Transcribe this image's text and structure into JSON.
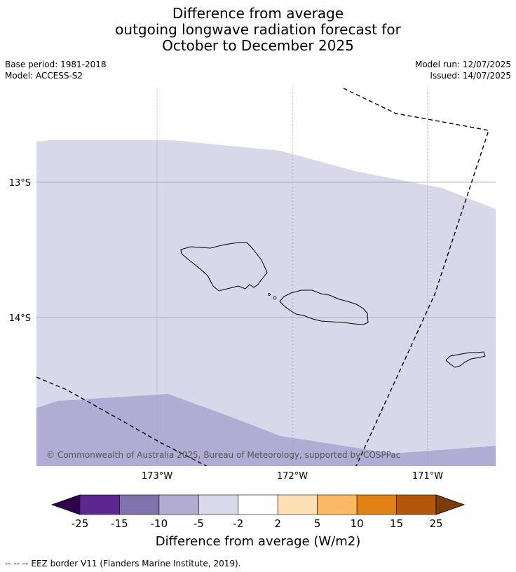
{
  "title": {
    "line1": "Difference from average",
    "line2": "outgoing longwave radiation forecast for",
    "line3": "October to December 2025"
  },
  "meta": {
    "base_period": "Base period: 1981-2018",
    "model": "Model: ACCESS-S2",
    "model_run": "Model run: 12/07/2025",
    "issued": "Issued: 14/07/2025"
  },
  "map": {
    "lat_labels": [
      "13°S",
      "14°S"
    ],
    "lon_labels": [
      "173°W",
      "172°W",
      "171°W"
    ],
    "copyright": "© Commonwealth of Australia 2025, Bureau of Meteorology, supported by COSPPac",
    "colors": {
      "band_-5_-2": "#d8d8ea",
      "band_-10_-5": "#b1acd3",
      "coastline": "#000000",
      "eez_line": "#000000"
    }
  },
  "colorbar": {
    "ticks": [
      "-25",
      "-15",
      "-10",
      "-5",
      "-2",
      "2",
      "5",
      "10",
      "15",
      "25"
    ],
    "colors": [
      "#2d004b",
      "#5d2790",
      "#8073ac",
      "#b2abd2",
      "#d8daeb",
      "#ffffff",
      "#fee0b6",
      "#fdb863",
      "#e08214",
      "#b35806",
      "#7f3b08"
    ],
    "label": "Difference from average (W/m2)"
  },
  "footer": {
    "legend_text": "--  --  -- EEZ border V11 (Flanders Marine Institute, 2019)."
  }
}
